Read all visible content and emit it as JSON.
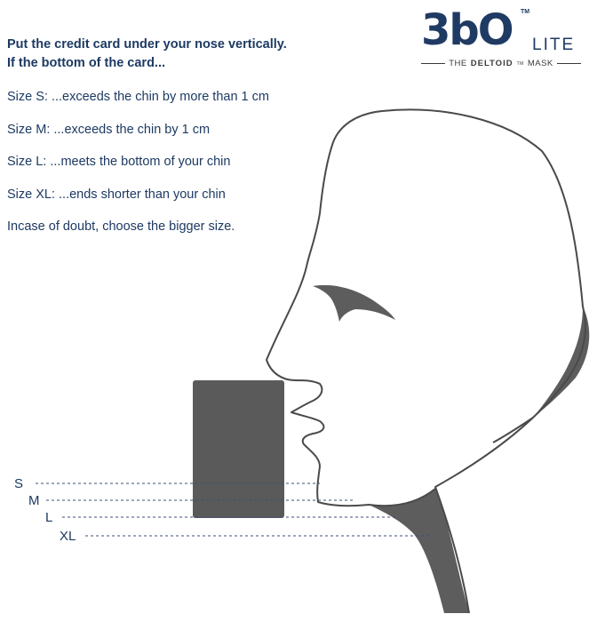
{
  "logo": {
    "mark": "3bO",
    "tm": "TM",
    "lite": "LITE",
    "tagline_prefix": "THE",
    "tagline_brand": "DELTOID",
    "tagline_tm": "TM",
    "tagline_suffix": "MASK"
  },
  "instructions": {
    "intro_line1": "Put the credit card  under your nose vertically.",
    "intro_line2": "If the bottom of the card...",
    "sizes": [
      {
        "text": "Size S: ...exceeds the chin by more than 1 cm"
      },
      {
        "text": "Size M: ...exceeds the chin by 1 cm"
      },
      {
        "text": "Size L: ...meets the bottom of your chin"
      },
      {
        "text": "Size XL: ...ends shorter than your chin"
      }
    ],
    "doubt": "Incase of doubt, choose the bigger size."
  },
  "diagram": {
    "size_labels": [
      "S",
      "M",
      "L",
      "XL"
    ],
    "colors": {
      "text": "#1d3a63",
      "card": "#5a5a5a",
      "head_outline": "#4a4a4a",
      "shadow": "#5d5d5d",
      "guide_line": "#3c4d7a"
    }
  }
}
